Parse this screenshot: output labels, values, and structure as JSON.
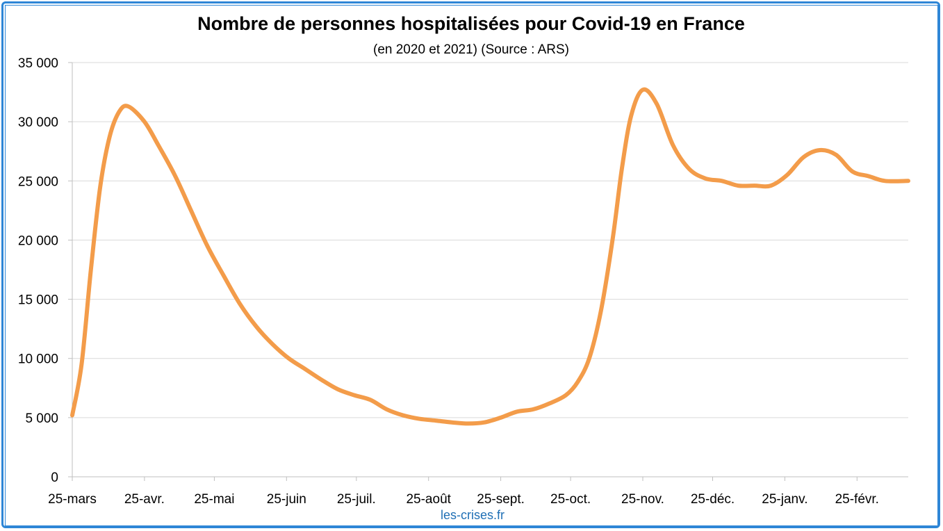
{
  "chart_data": {
    "type": "line",
    "title": "Nombre de personnes hospitalisées pour Covid-19 en France",
    "subtitle": "(en 2020 et 2021) (Source : ARS)",
    "xlabel": "",
    "ylabel": "",
    "ylim": [
      0,
      35000
    ],
    "y_ticks": [
      0,
      5000,
      10000,
      15000,
      20000,
      25000,
      30000,
      35000
    ],
    "y_tick_labels": [
      "0",
      "5 000",
      "10 000",
      "15 000",
      "20 000",
      "25 000",
      "30 000",
      "35 000"
    ],
    "x_tick_labels": [
      "25-mars",
      "25-avr.",
      "25-mai",
      "25-juin",
      "25-juil.",
      "25-août",
      "25-sept.",
      "25-oct.",
      "25-nov.",
      "25-déc.",
      "25-janv.",
      "25-févr."
    ],
    "x_tick_dates": [
      "2020-03-25",
      "2020-04-25",
      "2020-05-25",
      "2020-06-25",
      "2020-07-25",
      "2020-08-25",
      "2020-09-25",
      "2020-10-25",
      "2020-11-25",
      "2020-12-25",
      "2021-01-25",
      "2021-02-25"
    ],
    "x_range": [
      "2020-03-25",
      "2021-03-19"
    ],
    "grid": true,
    "series": [
      {
        "color": "#f39c4a",
        "x": [
          "2020-03-25",
          "2020-03-29",
          "2020-04-02",
          "2020-04-06",
          "2020-04-10",
          "2020-04-14",
          "2020-04-18",
          "2020-04-25",
          "2020-05-01",
          "2020-05-08",
          "2020-05-15",
          "2020-05-22",
          "2020-05-29",
          "2020-06-05",
          "2020-06-12",
          "2020-06-19",
          "2020-06-26",
          "2020-07-03",
          "2020-07-10",
          "2020-07-17",
          "2020-07-24",
          "2020-07-31",
          "2020-08-07",
          "2020-08-14",
          "2020-08-21",
          "2020-08-28",
          "2020-09-04",
          "2020-09-11",
          "2020-09-18",
          "2020-09-25",
          "2020-10-02",
          "2020-10-09",
          "2020-10-16",
          "2020-10-23",
          "2020-10-28",
          "2020-11-02",
          "2020-11-07",
          "2020-11-12",
          "2020-11-16",
          "2020-11-20",
          "2020-11-25",
          "2020-12-01",
          "2020-12-08",
          "2020-12-15",
          "2020-12-22",
          "2020-12-29",
          "2021-01-05",
          "2021-01-12",
          "2021-01-19",
          "2021-01-26",
          "2021-02-02",
          "2021-02-09",
          "2021-02-16",
          "2021-02-23",
          "2021-03-02",
          "2021-03-09",
          "2021-03-19"
        ],
        "values": [
          5200,
          9500,
          17500,
          24500,
          28700,
          30800,
          31300,
          30000,
          28000,
          25500,
          22500,
          19500,
          17000,
          14600,
          12700,
          11200,
          10000,
          9100,
          8200,
          7400,
          6900,
          6500,
          5700,
          5200,
          4900,
          4750,
          4600,
          4500,
          4600,
          5000,
          5500,
          5700,
          6200,
          6900,
          8000,
          10000,
          14000,
          20000,
          26000,
          30500,
          32700,
          31500,
          28000,
          26000,
          25200,
          25000,
          24600,
          24600,
          24600,
          25500,
          27000,
          27600,
          27200,
          25800,
          25400,
          25000,
          25000
        ]
      }
    ],
    "source_label": "les-crises.fr"
  }
}
